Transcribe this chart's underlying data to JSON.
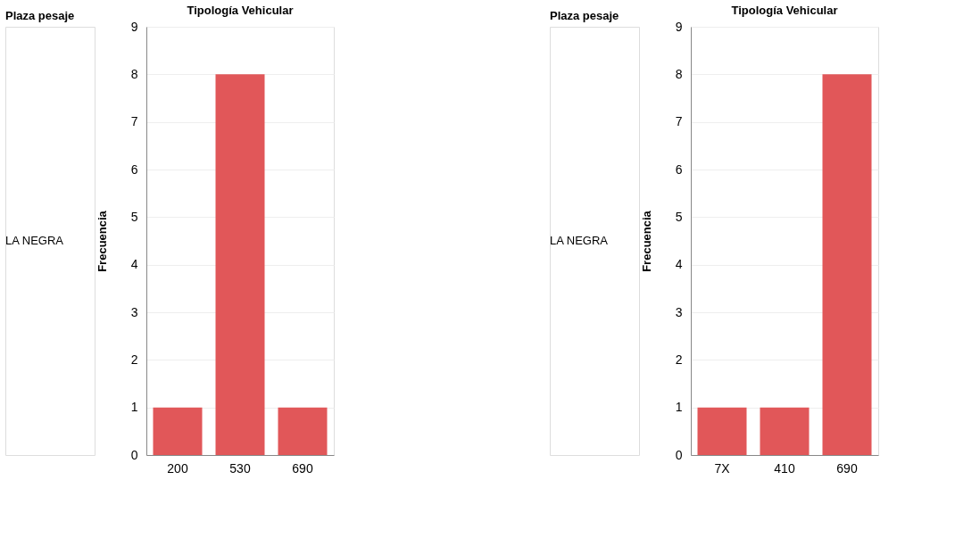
{
  "chart_data": [
    {
      "type": "bar",
      "xlabel": "Tipología Vehicular",
      "ylabel": "Frecuencia",
      "annotations": [
        "Plaza pesaje",
        "LA NEGRA"
      ],
      "categories": [
        "200",
        "530",
        "690"
      ],
      "values": [
        1,
        8,
        1
      ],
      "color": "#e15759",
      "ylim": [
        0,
        9
      ],
      "yticks": [
        0,
        1,
        2,
        3,
        4,
        5,
        6,
        7,
        8,
        9
      ],
      "grid": "y"
    },
    {
      "type": "bar",
      "xlabel": "Tipología Vehicular",
      "ylabel": "Frecuencia",
      "annotations": [
        "Plaza pesaje",
        "LA NEGRA"
      ],
      "categories": [
        "7X",
        "410",
        "690"
      ],
      "values": [
        1,
        1,
        8
      ],
      "color": "#e15759",
      "ylim": [
        0,
        9
      ],
      "yticks": [
        0,
        1,
        2,
        3,
        4,
        5,
        6,
        7,
        8,
        9
      ],
      "grid": "y"
    }
  ]
}
